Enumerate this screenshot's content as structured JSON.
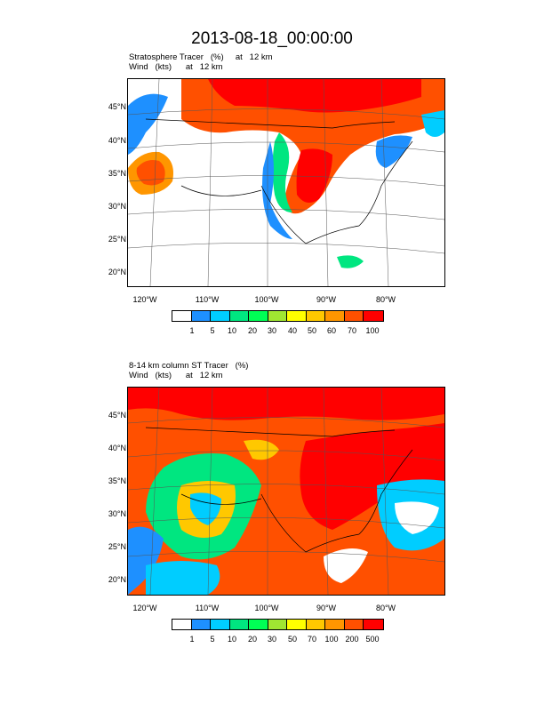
{
  "title": "2013-08-18_00:00:00",
  "panels": [
    {
      "subtitle_line1": "Stratosphere Tracer   (%)     at   12 km",
      "subtitle_line2": "Wind   (kts)      at   12 km",
      "lat_labels": [
        "45°N",
        "40°N",
        "35°N",
        "30°N",
        "25°N",
        "20°N"
      ],
      "lon_labels": [
        "120°W",
        "110°W",
        "100°W",
        "90°W",
        "80°W"
      ],
      "colorbar_labels": [
        "1",
        "5",
        "10",
        "20",
        "30",
        "40",
        "50",
        "60",
        "70",
        "100"
      ]
    },
    {
      "subtitle_line1": "8-14 km column ST Tracer   (%)",
      "subtitle_line2": "Wind   (kts)      at   12 km",
      "lat_labels": [
        "45°N",
        "40°N",
        "35°N",
        "30°N",
        "25°N",
        "20°N"
      ],
      "lon_labels": [
        "120°W",
        "110°W",
        "100°W",
        "90°W",
        "80°W"
      ],
      "colorbar_labels": [
        "1",
        "5",
        "10",
        "20",
        "30",
        "50",
        "70",
        "100",
        "200",
        "500"
      ]
    }
  ],
  "colorbar_colors": [
    "#ffffff",
    "#1e90ff",
    "#00cdff",
    "#00e680",
    "#00ff55",
    "#a0e632",
    "#ffff00",
    "#ffc800",
    "#ff9600",
    "#ff5000",
    "#ff0000"
  ]
}
